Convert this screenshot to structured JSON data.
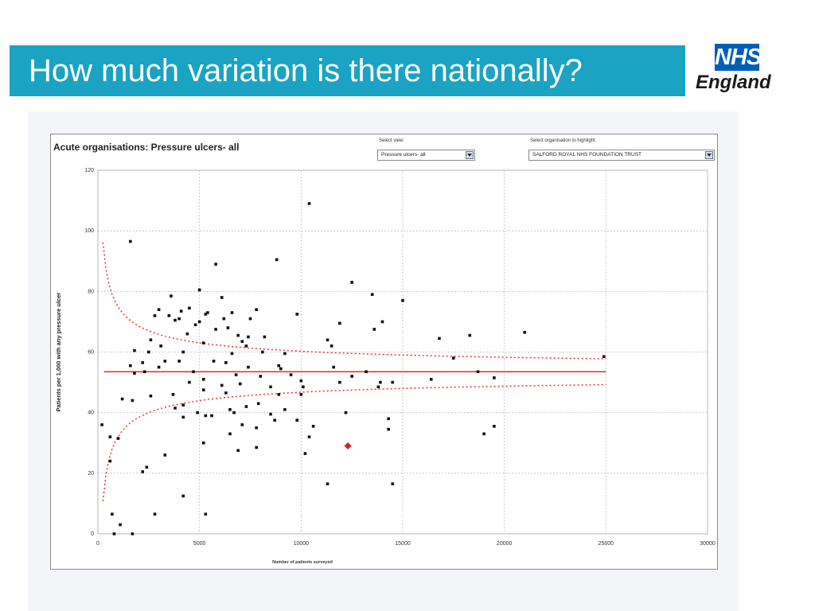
{
  "slide": {
    "title": "How much variation is there nationally?",
    "logo": {
      "top": "NHS",
      "bottom": "England"
    },
    "colors": {
      "title_bar": "#1aa3c2",
      "logo_blue": "#005eb8"
    }
  },
  "controls": {
    "view_label": "Select view:",
    "view_value": "Pressure ulcers- all",
    "org_label": "Select organisation to highlight:",
    "org_value": "SALFORD ROYAL NHS FOUNDATION TRUST"
  },
  "chart_data": {
    "type": "scatter",
    "title": "Acute organisations: Pressure ulcers- all",
    "xlabel": "Number of patients surveyed",
    "ylabel": "Patients per 1,000 with any pressure ulcer",
    "xlim": [
      0,
      30000
    ],
    "ylim": [
      0,
      120
    ],
    "xticks": [
      0,
      5000,
      10000,
      15000,
      20000,
      25000,
      30000
    ],
    "yticks": [
      0,
      20,
      40,
      60,
      80,
      100,
      120
    ],
    "grid": true,
    "mean_line": {
      "y": 53.5,
      "x_start": 300,
      "x_end": 25000,
      "color": "#e32b24"
    },
    "control_limits_color": "#e32b24",
    "highlight": {
      "x": 12300,
      "y": 29,
      "color": "#d42020"
    },
    "points": [
      [
        1600,
        96.5
      ],
      [
        10400,
        109
      ],
      [
        8800,
        90.5
      ],
      [
        5800,
        89
      ],
      [
        12500,
        83
      ],
      [
        5000,
        80.5
      ],
      [
        13500,
        79
      ],
      [
        3600,
        78.5
      ],
      [
        6100,
        78
      ],
      [
        15000,
        77
      ],
      [
        3000,
        74
      ],
      [
        4100,
        73.5
      ],
      [
        4500,
        74.5
      ],
      [
        5400,
        73
      ],
      [
        6600,
        73
      ],
      [
        7800,
        74
      ],
      [
        3500,
        72
      ],
      [
        5300,
        72.5
      ],
      [
        9800,
        72.5
      ],
      [
        2800,
        72
      ],
      [
        4000,
        71
      ],
      [
        6200,
        71
      ],
      [
        7500,
        71
      ],
      [
        3800,
        70.5
      ],
      [
        5000,
        70
      ],
      [
        11900,
        69.5
      ],
      [
        14000,
        70
      ],
      [
        4800,
        69
      ],
      [
        6400,
        68
      ],
      [
        5800,
        67.5
      ],
      [
        13600,
        67.5
      ],
      [
        21000,
        66.5
      ],
      [
        4400,
        66
      ],
      [
        6900,
        65.5
      ],
      [
        18300,
        65.5
      ],
      [
        7400,
        65
      ],
      [
        8200,
        65
      ],
      [
        2600,
        64
      ],
      [
        16800,
        64.5
      ],
      [
        7100,
        63.5
      ],
      [
        11300,
        64
      ],
      [
        5200,
        63
      ],
      [
        7300,
        62
      ],
      [
        3100,
        62
      ],
      [
        11500,
        62
      ],
      [
        1800,
        60.5
      ],
      [
        2500,
        60
      ],
      [
        4200,
        60
      ],
      [
        6600,
        59.5
      ],
      [
        8100,
        60
      ],
      [
        9200,
        59.5
      ],
      [
        17500,
        58
      ],
      [
        24900,
        58.5
      ],
      [
        3300,
        57
      ],
      [
        4000,
        57
      ],
      [
        5700,
        57
      ],
      [
        6300,
        56.5
      ],
      [
        8900,
        55.5
      ],
      [
        2200,
        56.5
      ],
      [
        1600,
        55.5
      ],
      [
        3000,
        55
      ],
      [
        7400,
        55
      ],
      [
        9000,
        54.5
      ],
      [
        11600,
        55
      ],
      [
        18700,
        53.5
      ],
      [
        1800,
        53
      ],
      [
        2300,
        53.5
      ],
      [
        4700,
        53.5
      ],
      [
        6800,
        52.5
      ],
      [
        8000,
        52
      ],
      [
        9500,
        52.5
      ],
      [
        13200,
        53.5
      ],
      [
        12500,
        52
      ],
      [
        16400,
        51
      ],
      [
        19500,
        51.5
      ],
      [
        5200,
        51
      ],
      [
        10000,
        50.5
      ],
      [
        13900,
        50
      ],
      [
        4500,
        50
      ],
      [
        6100,
        49
      ],
      [
        7000,
        49.5
      ],
      [
        8500,
        48.5
      ],
      [
        10100,
        48.5
      ],
      [
        11900,
        50
      ],
      [
        14500,
        50
      ],
      [
        13800,
        48.5
      ],
      [
        5200,
        47.5
      ],
      [
        6300,
        46.5
      ],
      [
        3700,
        46
      ],
      [
        8900,
        46
      ],
      [
        10000,
        46
      ],
      [
        2600,
        45.5
      ],
      [
        1200,
        44.5
      ],
      [
        1700,
        44
      ],
      [
        7900,
        43
      ],
      [
        4200,
        42.5
      ],
      [
        7300,
        42
      ],
      [
        3800,
        41.5
      ],
      [
        6500,
        41
      ],
      [
        9200,
        41
      ],
      [
        6700,
        40
      ],
      [
        4900,
        40
      ],
      [
        8500,
        39.5
      ],
      [
        5300,
        39
      ],
      [
        5600,
        39
      ],
      [
        4200,
        38.5
      ],
      [
        9800,
        37.5
      ],
      [
        14300,
        38
      ],
      [
        8700,
        37.5
      ],
      [
        12200,
        40
      ],
      [
        7100,
        36
      ],
      [
        10600,
        35.5
      ],
      [
        19500,
        35.5
      ],
      [
        7800,
        35
      ],
      [
        6500,
        33
      ],
      [
        10400,
        32
      ],
      [
        14300,
        34.5
      ],
      [
        19000,
        33
      ],
      [
        200,
        36
      ],
      [
        600,
        32
      ],
      [
        1000,
        31.5
      ],
      [
        5200,
        30
      ],
      [
        7800,
        28.5
      ],
      [
        6900,
        27.5
      ],
      [
        10200,
        26.5
      ],
      [
        3300,
        26
      ],
      [
        600,
        24
      ],
      [
        2400,
        22
      ],
      [
        2200,
        20.5
      ],
      [
        11300,
        16.5
      ],
      [
        14500,
        16.5
      ],
      [
        4200,
        12.5
      ],
      [
        2800,
        6.5
      ],
      [
        5300,
        6.5
      ],
      [
        700,
        6.5
      ],
      [
        1100,
        3
      ],
      [
        800,
        0
      ],
      [
        1700,
        0
      ]
    ]
  }
}
